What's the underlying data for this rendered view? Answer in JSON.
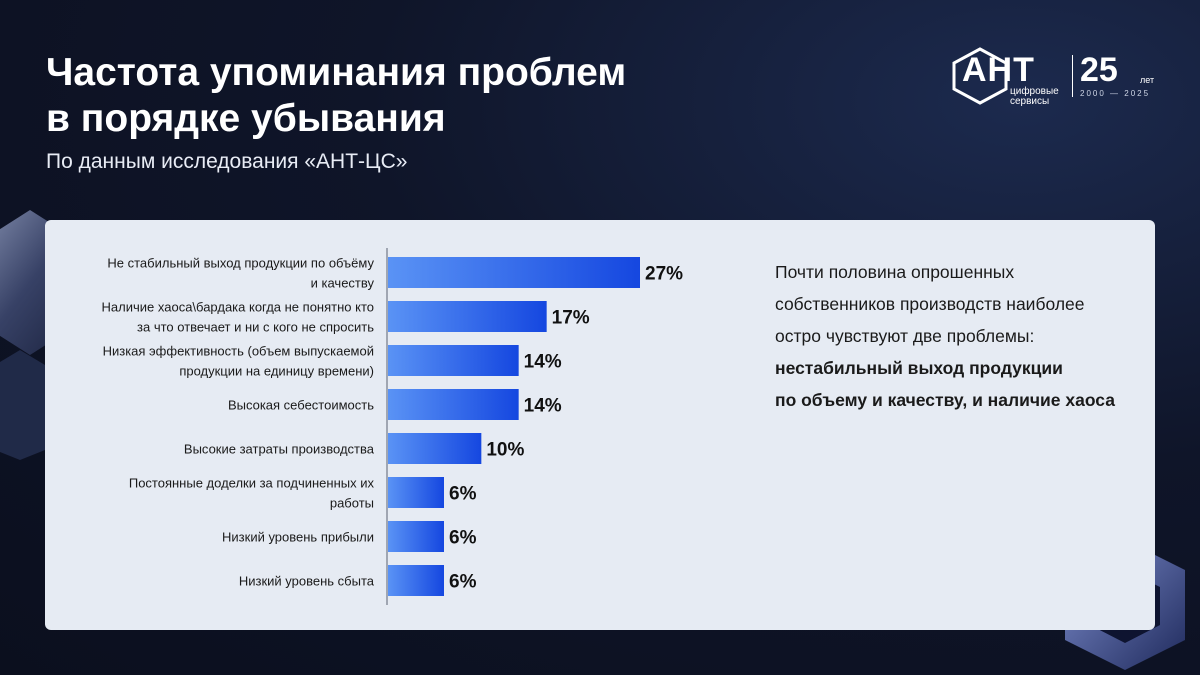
{
  "header": {
    "title_line1": "Частота упоминания проблем",
    "title_line2": "в порядке убывания",
    "subtitle": "По данным исследования «АНТ-ЦС»"
  },
  "logo": {
    "word": "АНТ",
    "sub_line1": "цифровые",
    "sub_line2": "сервисы",
    "anniversary": "25",
    "let": "лет",
    "years": "2000 — 2025"
  },
  "note": {
    "line1": "Почти половина опрошенных",
    "line2": "собственников производств наиболее",
    "line3": "остро чувствуют две проблемы:",
    "bold_line1": "нестабильный выход продукции",
    "bold_line2": "по объему и качеству, и наличие хаоса"
  },
  "colors": {
    "bar_start": "#5a93f5",
    "bar_end": "#1547e0",
    "panel_bg": "#e6ebf3",
    "page_bg": "#0f1529"
  },
  "chart_data": {
    "type": "bar",
    "orientation": "horizontal",
    "categories": [
      [
        "Не стабильный выход продукции по объёму",
        "и качеству"
      ],
      [
        "Наличие хаоса\\бардака когда не понятно кто",
        "за что отвечает и ни с кого не спросить"
      ],
      [
        "Низкая эффективность (объем выпускаемой",
        "продукции на единицу времени)"
      ],
      [
        "Высокая себестоимость"
      ],
      [
        "Высокие затраты производства"
      ],
      [
        "Постоянные доделки за подчиненных их",
        "работы"
      ],
      [
        "Низкий уровень прибыли"
      ],
      [
        "Низкий уровень сбыта"
      ]
    ],
    "values": [
      27,
      17,
      14,
      14,
      10,
      6,
      6,
      6
    ],
    "value_labels": [
      "27%",
      "17%",
      "14%",
      "14%",
      "10%",
      "6%",
      "6%",
      "6%"
    ],
    "unit": "%",
    "xlim": [
      0,
      27
    ],
    "grid": false,
    "legend": "none"
  }
}
